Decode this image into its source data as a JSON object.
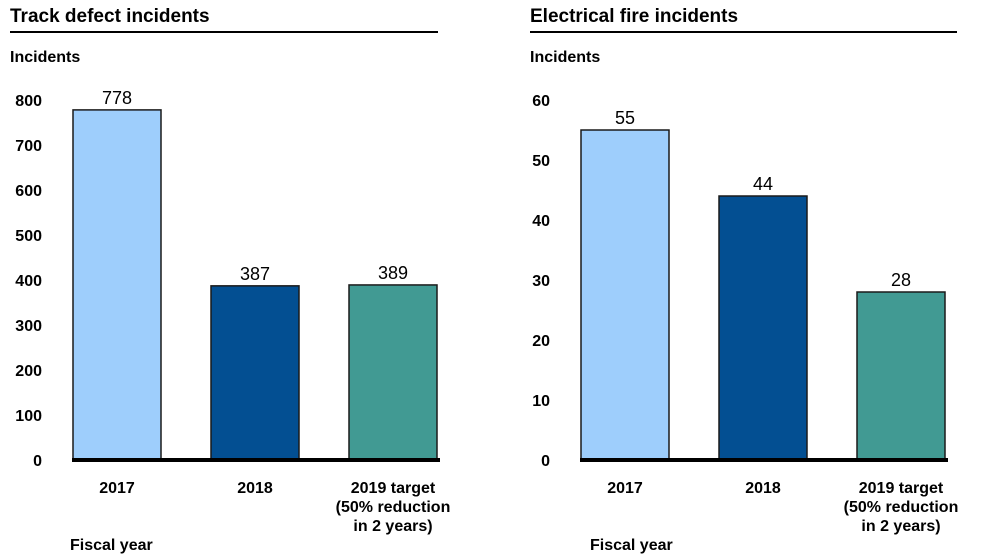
{
  "chart_data": [
    {
      "type": "bar",
      "title": "Track defect incidents",
      "ylabel": "Incidents",
      "xlabel": "Fiscal year",
      "categories": [
        "2017",
        "2018",
        "2019 target\n(50% reduction\nin 2 years)"
      ],
      "values": [
        778,
        387,
        389
      ],
      "data_labels": [
        "778",
        "387",
        "389"
      ],
      "ylim": [
        0,
        800
      ],
      "yticks": [
        0,
        100,
        200,
        300,
        400,
        500,
        600,
        700,
        800
      ],
      "ytick_labels": [
        "0",
        "100",
        "200",
        "300",
        "400",
        "500",
        "600",
        "700",
        "800"
      ],
      "grid": false,
      "bar_colors": [
        "#9ecefc",
        "#034f92",
        "#419a93"
      ]
    },
    {
      "type": "bar",
      "title": "Electrical fire incidents",
      "ylabel": "Incidents",
      "xlabel": "Fiscal year",
      "categories": [
        "2017",
        "2018",
        "2019 target\n(50% reduction\nin 2 years)"
      ],
      "values": [
        55,
        44,
        28
      ],
      "data_labels": [
        "55",
        "44",
        "28"
      ],
      "ylim": [
        0,
        60
      ],
      "yticks": [
        0,
        10,
        20,
        30,
        40,
        50,
        60
      ],
      "ytick_labels": [
        "0",
        "10",
        "20",
        "30",
        "40",
        "50",
        "60"
      ],
      "grid": false,
      "bar_colors": [
        "#9ecefc",
        "#034f92",
        "#419a93"
      ]
    }
  ]
}
